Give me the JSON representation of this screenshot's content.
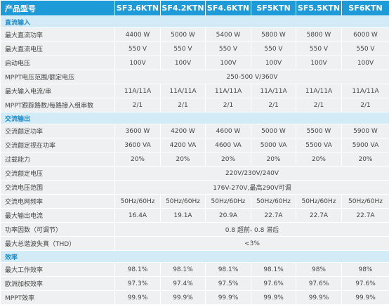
{
  "header": {
    "label": "产品型号",
    "models": [
      "SF3.6KTN",
      "SF4.2KTN",
      "SF4.6KTN",
      "SF5KTN",
      "SF5.5KTN",
      "SF6KTN"
    ]
  },
  "sections": [
    {
      "title": "直流输入",
      "rows": [
        {
          "label": "最大直流功率",
          "values": [
            "4400 W",
            "5000 W",
            "5400 W",
            "5800 W",
            "5800 W",
            "6000 W"
          ]
        },
        {
          "label": "最大直流电压",
          "values": [
            "550 V",
            "550 V",
            "550 V",
            "550 V",
            "550 V",
            "550 V"
          ]
        },
        {
          "label": "启动电压",
          "values": [
            "100V",
            "100V",
            "100V",
            "100V",
            "100V",
            "100V"
          ]
        },
        {
          "label": "MPPT电压范围/额定电压",
          "value": "250-500 V/360V"
        },
        {
          "label": "最大输入电流/串",
          "values": [
            "11A/11A",
            "11A/11A",
            "11A/11A",
            "11A/11A",
            "11A/11A",
            "11A/11A"
          ]
        },
        {
          "label": "MPPT跟踪路数/每路接入组串数",
          "values": [
            "2/1",
            "2/1",
            "2/1",
            "2/1",
            "2/1",
            "2/1"
          ]
        }
      ]
    },
    {
      "title": "交流输出",
      "rows": [
        {
          "label": "交流额定功率",
          "values": [
            "3600 W",
            "4200 W",
            "4600 W",
            "5000 W",
            "5500 W",
            "5900 W"
          ]
        },
        {
          "label": "交流额定视在功率",
          "values": [
            "3600 VA",
            "4200 VA",
            "4600 VA",
            "5000 VA",
            "5500 VA",
            "5900 VA"
          ]
        },
        {
          "label": "过载能力",
          "values": [
            "20%",
            "20%",
            "20%",
            "20%",
            "20%",
            "20%"
          ]
        },
        {
          "label": "交流额定电压",
          "value": "220V/230V/240V"
        },
        {
          "label": "交流电压范围",
          "value": "176V-270V,最高290V可调"
        },
        {
          "label": "交流电网频率",
          "values": [
            "50Hz/60Hz",
            "50Hz/60Hz",
            "50Hz/60Hz",
            "50Hz/60Hz",
            "50Hz/60Hz",
            "50Hz/60Hz"
          ]
        },
        {
          "label": "最大输出电流",
          "values": [
            "16.4A",
            "19.1A",
            "20.9A",
            "22.7A",
            "22.7A",
            "22.7A"
          ]
        },
        {
          "label": "功率因数（可调节）",
          "value": "0.8 超前- 0.8 滞后"
        },
        {
          "label": "最大总谐波失真（THD）",
          "value": "<3%"
        }
      ]
    },
    {
      "title": "效率",
      "rows": [
        {
          "label": "最大工作效率",
          "values": [
            "98.1%",
            "98.1%",
            "98.1%",
            "98.1%",
            "98%",
            "98%"
          ]
        },
        {
          "label": "欧洲加权效率",
          "values": [
            "97.3%",
            "97.4%",
            "97.5%",
            "97.6%",
            "97.6%",
            "97.6%"
          ]
        },
        {
          "label": "MPPT效率",
          "values": [
            "99.9%",
            "99.9%",
            "99.9%",
            "99.9%",
            "99.9%",
            "99.9%"
          ]
        }
      ]
    }
  ]
}
